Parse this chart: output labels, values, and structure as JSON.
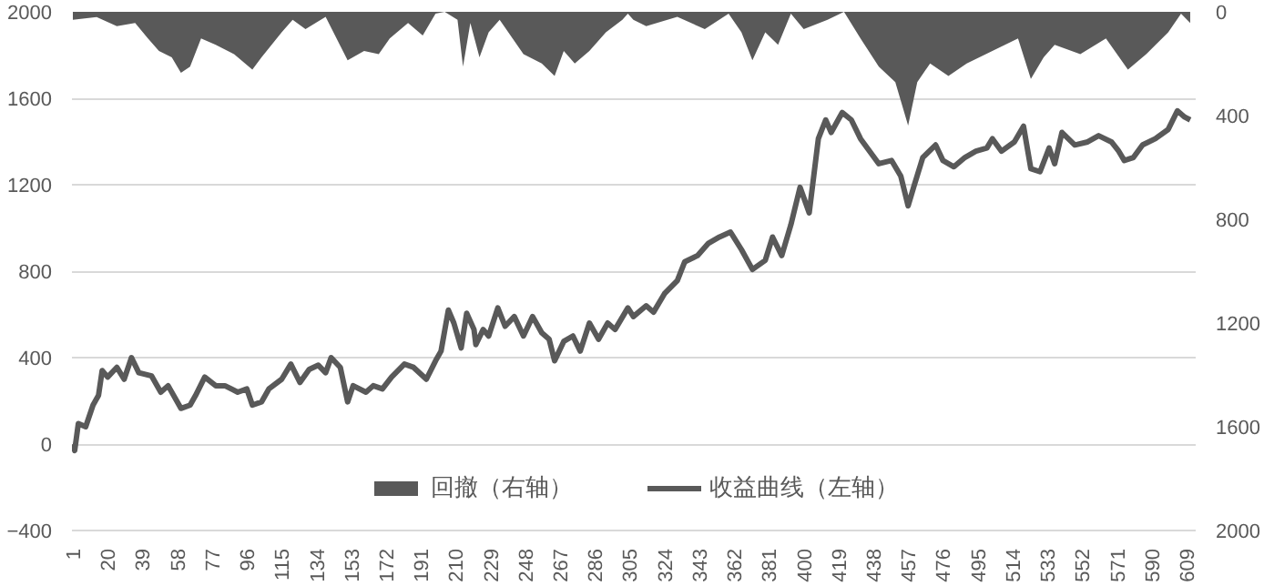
{
  "chart_data": {
    "type": "line",
    "xlim": [
      0.5,
      614
    ],
    "xticks": [
      1,
      20,
      39,
      58,
      77,
      96,
      115,
      134,
      153,
      172,
      191,
      210,
      229,
      248,
      267,
      286,
      305,
      324,
      343,
      362,
      381,
      400,
      419,
      438,
      457,
      476,
      495,
      514,
      533,
      552,
      571,
      590,
      609
    ],
    "ylim": [
      -400,
      2000
    ],
    "yticks": [
      -400,
      0,
      400,
      800,
      1200,
      1600,
      2000
    ],
    "y2lim": [
      2000,
      0
    ],
    "y2ticks": [
      0,
      400,
      800,
      1200,
      1600,
      2000
    ],
    "grid": "y",
    "legend": "bottom",
    "line_style": "solid",
    "marker": "none",
    "series": [
      {
        "name": "回撤（右轴）",
        "type": "area",
        "axis": "y2",
        "color": "#595959",
        "x": [
          1,
          14,
          25,
          35,
          42,
          48,
          55,
          60,
          65,
          71,
          79,
          89,
          99,
          104,
          115,
          121,
          128,
          139,
          151,
          160,
          168,
          174,
          184,
          192,
          199,
          204,
          211,
          214,
          218,
          223,
          228,
          234,
          247,
          257,
          264,
          269,
          275,
          283,
          292,
          301,
          304,
          307,
          314,
          331,
          346,
          359,
          366,
          372,
          379,
          386,
          393,
          400,
          413,
          422,
          431,
          441,
          450,
          457,
          462,
          469,
          479,
          489,
          503,
          517,
          524,
          531,
          537,
          551,
          565,
          577,
          587,
          599,
          606,
          611
        ],
        "values": [
          31,
          20,
          55,
          43,
          103,
          151,
          175,
          235,
          211,
          103,
          127,
          163,
          223,
          175,
          79,
          31,
          67,
          19,
          187,
          151,
          163,
          103,
          43,
          91,
          7,
          0,
          31,
          211,
          43,
          175,
          79,
          31,
          163,
          199,
          247,
          151,
          199,
          151,
          79,
          31,
          7,
          31,
          55,
          19,
          67,
          7,
          79,
          187,
          79,
          127,
          7,
          67,
          31,
          0,
          103,
          211,
          271,
          439,
          271,
          199,
          247,
          199,
          151,
          103,
          259,
          175,
          127,
          163,
          103,
          223,
          163,
          79,
          7,
          43
        ]
      },
      {
        "name": "收益曲线（左轴）",
        "color": "#595959",
        "x": [
          1,
          2,
          4,
          8,
          12,
          15,
          17,
          20,
          25,
          29,
          33,
          37,
          44,
          49,
          53,
          60,
          65,
          68,
          73,
          79,
          84,
          91,
          96,
          99,
          104,
          108,
          115,
          120,
          125,
          130,
          135,
          139,
          142,
          147,
          151,
          154,
          161,
          165,
          170,
          175,
          182,
          187,
          194,
          199,
          202,
          206,
          209,
          213,
          216,
          220,
          221,
          225,
          228,
          233,
          237,
          242,
          247,
          252,
          257,
          261,
          264,
          269,
          274,
          278,
          283,
          288,
          293,
          297,
          304,
          307,
          314,
          318,
          324,
          331,
          335,
          342,
          348,
          354,
          360,
          366,
          372,
          379,
          383,
          388,
          393,
          398,
          403,
          408,
          412,
          415,
          421,
          426,
          431,
          436,
          441,
          448,
          453,
          457,
          460,
          465,
          472,
          476,
          482,
          488,
          494,
          500,
          503,
          508,
          515,
          520,
          524,
          529,
          534,
          537,
          541,
          548,
          555,
          561,
          568,
          572,
          575,
          580,
          585,
          592,
          599,
          604,
          608,
          611
        ],
        "values": [
          0,
          -30,
          95,
          80,
          180,
          225,
          340,
          310,
          355,
          300,
          400,
          330,
          315,
          240,
          270,
          165,
          180,
          225,
          310,
          270,
          270,
          240,
          255,
          180,
          195,
          255,
          300,
          370,
          285,
          345,
          365,
          330,
          400,
          355,
          195,
          270,
          240,
          270,
          255,
          310,
          370,
          355,
          300,
          385,
          430,
          620,
          560,
          445,
          605,
          530,
          460,
          530,
          500,
          630,
          545,
          590,
          500,
          590,
          515,
          485,
          385,
          475,
          500,
          430,
          560,
          485,
          560,
          530,
          630,
          590,
          640,
          610,
          696,
          756,
          843,
          872,
          929,
          958,
          981,
          900,
          808,
          850,
          958,
          872,
          1015,
          1188,
          1070,
          1413,
          1500,
          1442,
          1534,
          1500,
          1413,
          1355,
          1297,
          1312,
          1240,
          1102,
          1188,
          1326,
          1384,
          1312,
          1283,
          1326,
          1355,
          1370,
          1413,
          1355,
          1398,
          1471,
          1274,
          1260,
          1370,
          1297,
          1442,
          1384,
          1398,
          1427,
          1398,
          1355,
          1312,
          1326,
          1384,
          1413,
          1456,
          1542,
          1513,
          1500
        ]
      }
    ]
  }
}
